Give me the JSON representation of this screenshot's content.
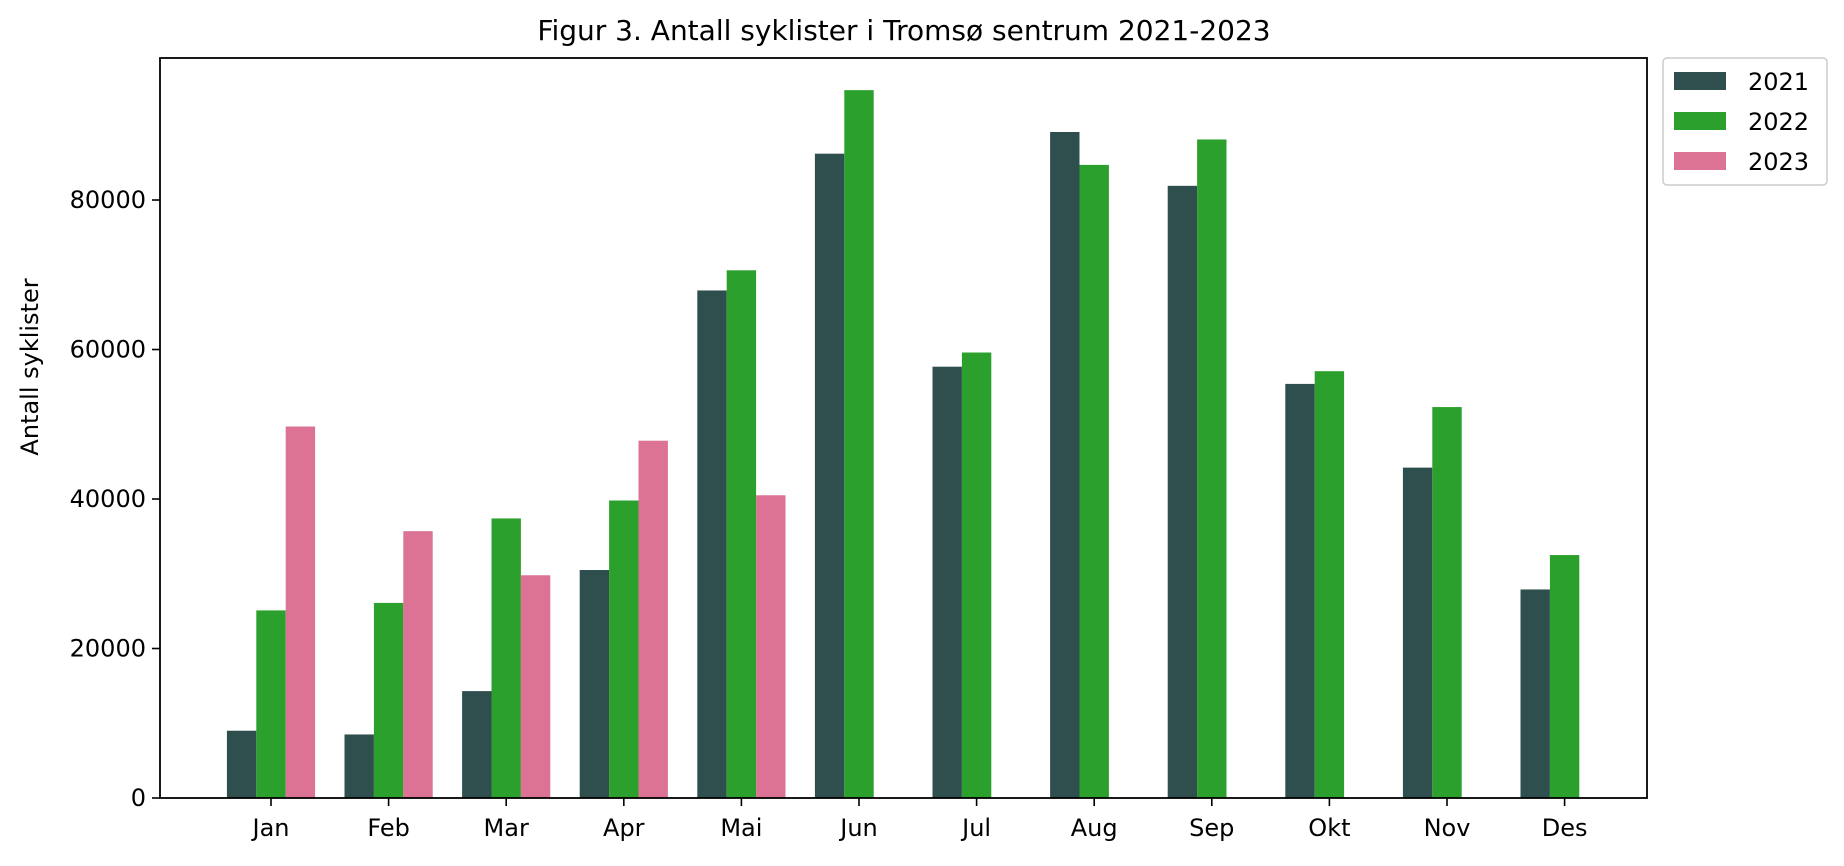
{
  "chart_data": {
    "type": "bar",
    "title": "Figur 3. Antall syklister i Tromsø sentrum 2021-2023",
    "xlabel": "",
    "ylabel": "Antall syklister",
    "ylim": [
      0,
      99000
    ],
    "yticks": [
      0,
      20000,
      40000,
      60000,
      80000
    ],
    "grid": false,
    "legend_position": "outside-top-right",
    "categories": [
      "Jan",
      "Feb",
      "Mar",
      "Apr",
      "Mai",
      "Jun",
      "Jul",
      "Aug",
      "Sep",
      "Okt",
      "Nov",
      "Des"
    ],
    "series": [
      {
        "name": "2021",
        "color": "#2f4f4f",
        "values": [
          9000,
          8500,
          14300,
          30500,
          67900,
          86200,
          57700,
          89100,
          81900,
          55400,
          44200,
          27900
        ]
      },
      {
        "name": "2022",
        "color": "#2ca02c",
        "values": [
          25100,
          26100,
          37400,
          39800,
          70600,
          94700,
          59600,
          84700,
          88100,
          57100,
          52300,
          32500
        ]
      },
      {
        "name": "2023",
        "color": "#dc7294",
        "values": [
          49700,
          35700,
          29800,
          47800,
          40500,
          null,
          null,
          null,
          null,
          null,
          null,
          null
        ]
      }
    ]
  }
}
